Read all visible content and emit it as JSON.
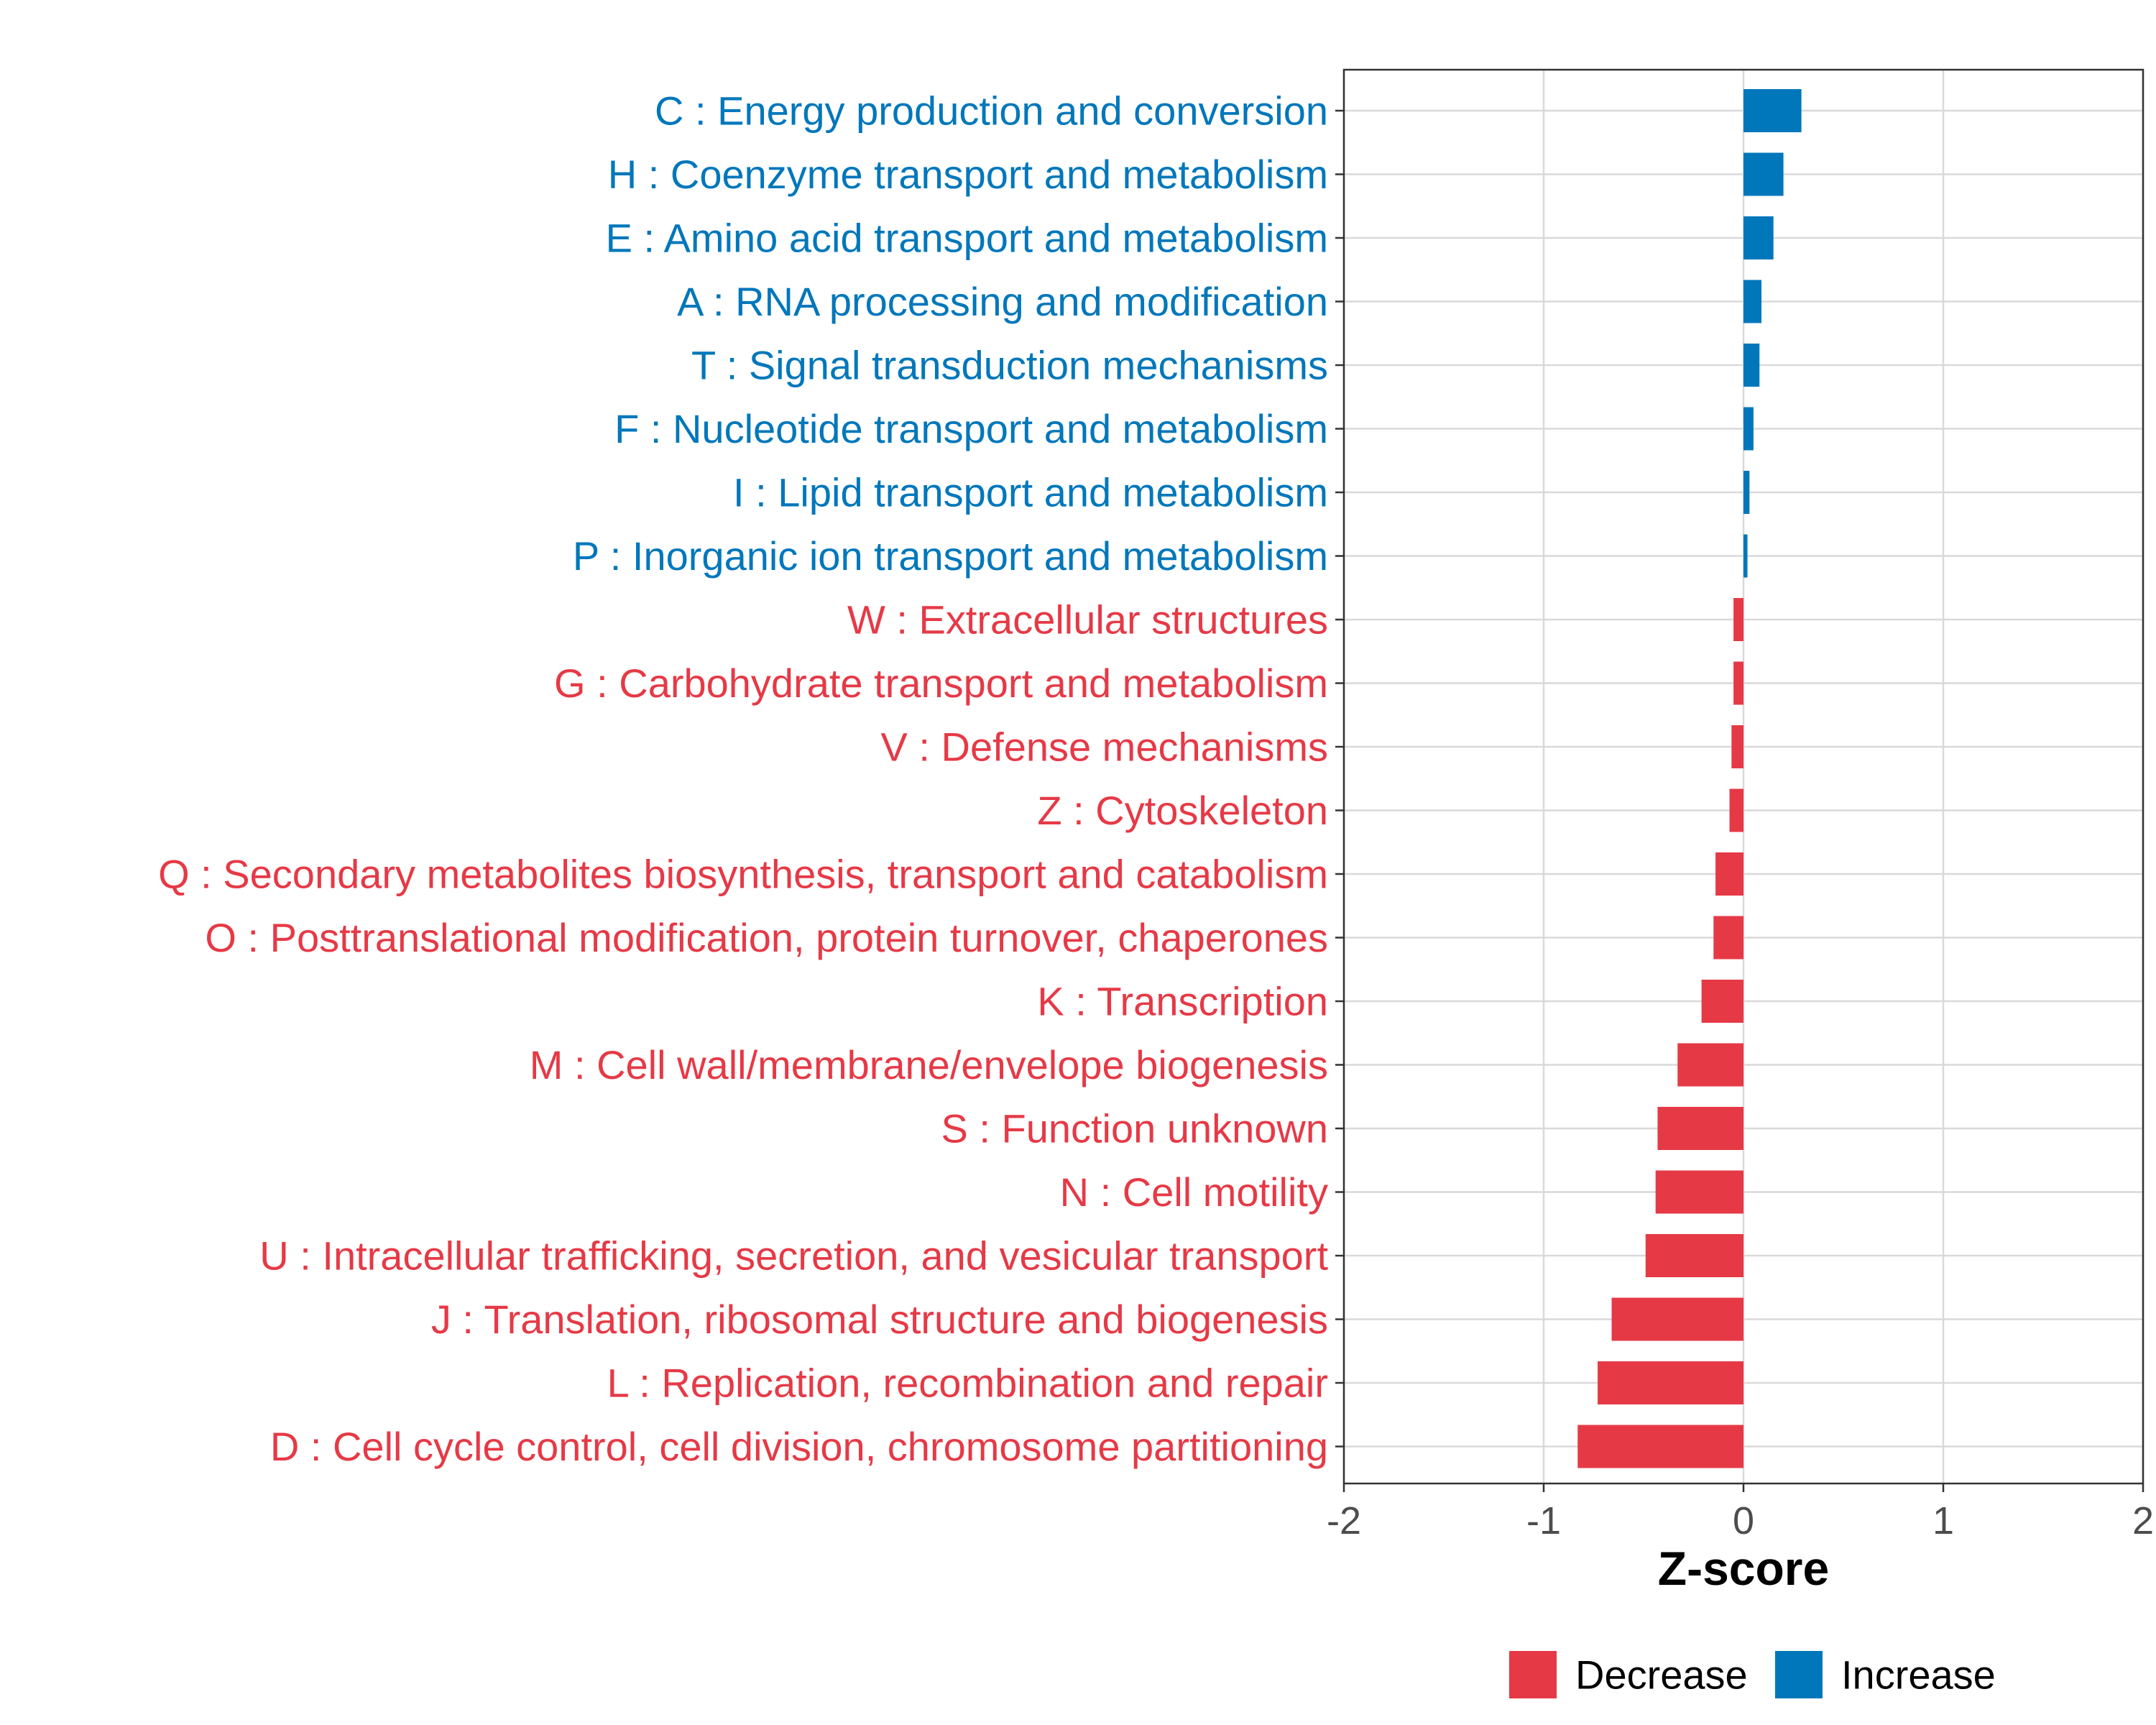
{
  "chart_data": {
    "type": "bar",
    "orientation": "horizontal",
    "xlabel": "Z-score",
    "ylabel": "",
    "xlim": [
      -2,
      2
    ],
    "x_ticks": [
      -2,
      -1,
      0,
      1,
      2
    ],
    "x_tick_labels": [
      "-2",
      "-1",
      "0",
      "1",
      "2"
    ],
    "grid": true,
    "legend_position": "bottom",
    "colors": {
      "Decrease": "#E63946",
      "Increase": "#0077BB"
    },
    "legend": [
      {
        "name": "Decrease",
        "color": "#E63946"
      },
      {
        "name": "Increase",
        "color": "#0077BB"
      }
    ],
    "bars": [
      {
        "category": "C : Energy production and conversion",
        "value": 0.29,
        "group": "Increase"
      },
      {
        "category": "H : Coenzyme transport and metabolism",
        "value": 0.2,
        "group": "Increase"
      },
      {
        "category": "E : Amino acid transport and metabolism",
        "value": 0.15,
        "group": "Increase"
      },
      {
        "category": "A : RNA processing and modification",
        "value": 0.09,
        "group": "Increase"
      },
      {
        "category": "T : Signal transduction mechanisms",
        "value": 0.08,
        "group": "Increase"
      },
      {
        "category": "F : Nucleotide transport and metabolism",
        "value": 0.05,
        "group": "Increase"
      },
      {
        "category": "I : Lipid transport and metabolism",
        "value": 0.03,
        "group": "Increase"
      },
      {
        "category": "P : Inorganic ion transport and metabolism",
        "value": 0.02,
        "group": "Increase"
      },
      {
        "category": "W : Extracellular structures",
        "value": -0.05,
        "group": "Decrease"
      },
      {
        "category": "G : Carbohydrate transport and metabolism",
        "value": -0.05,
        "group": "Decrease"
      },
      {
        "category": "V : Defense mechanisms",
        "value": -0.06,
        "group": "Decrease"
      },
      {
        "category": "Z : Cytoskeleton",
        "value": -0.07,
        "group": "Decrease"
      },
      {
        "category": "Q : Secondary metabolites biosynthesis, transport and catabolism",
        "value": -0.14,
        "group": "Decrease"
      },
      {
        "category": "O : Posttranslational modification, protein turnover, chaperones",
        "value": -0.15,
        "group": "Decrease"
      },
      {
        "category": "K : Transcription",
        "value": -0.21,
        "group": "Decrease"
      },
      {
        "category": "M : Cell wall/membrane/envelope biogenesis",
        "value": -0.33,
        "group": "Decrease"
      },
      {
        "category": "S : Function unknown",
        "value": -0.43,
        "group": "Decrease"
      },
      {
        "category": "N : Cell motility",
        "value": -0.44,
        "group": "Decrease"
      },
      {
        "category": "U : Intracellular trafficking, secretion, and vesicular transport",
        "value": -0.49,
        "group": "Decrease"
      },
      {
        "category": "J : Translation, ribosomal structure and biogenesis",
        "value": -0.66,
        "group": "Decrease"
      },
      {
        "category": "L : Replication, recombination and repair",
        "value": -0.73,
        "group": "Decrease"
      },
      {
        "category": "D : Cell cycle control, cell division, chromosome partitioning",
        "value": -0.83,
        "group": "Decrease"
      }
    ]
  }
}
